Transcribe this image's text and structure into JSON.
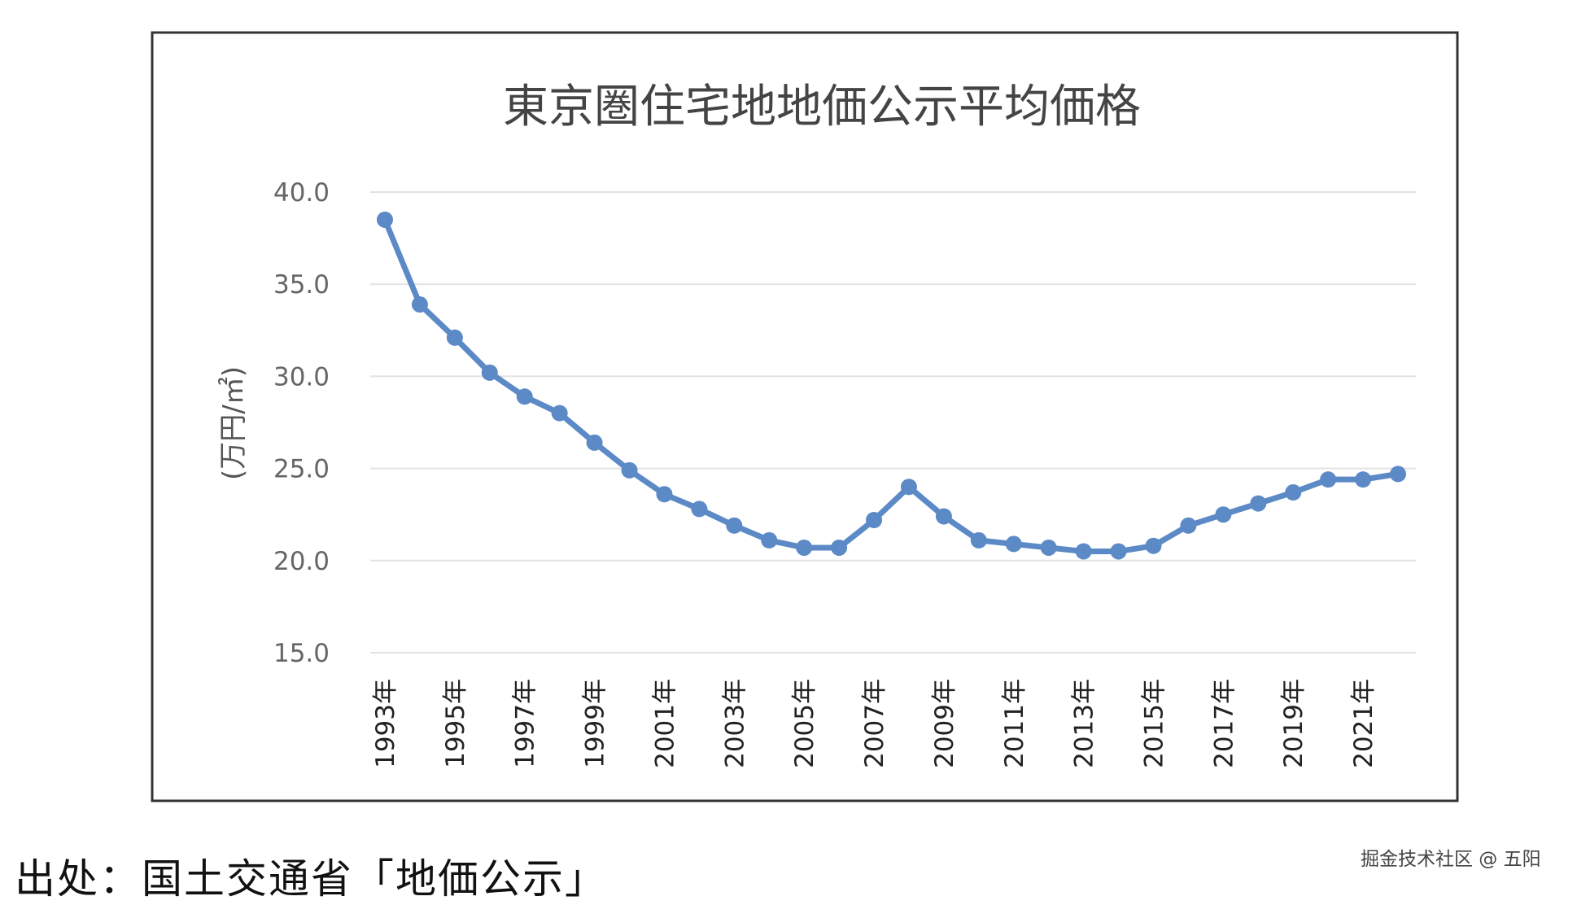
{
  "chart_data": {
    "type": "line",
    "title": "東京圏住宅地地価公示平均価格",
    "ylabel": "(万円/㎡)",
    "xlabel": "",
    "ylim": [
      15,
      40
    ],
    "yticks": [
      "40.0",
      "35.0",
      "30.0",
      "25.0",
      "20.0",
      "15.0"
    ],
    "ytick_values": [
      40,
      35,
      30,
      25,
      20,
      15
    ],
    "grid": true,
    "line_color": "#5b8ac6",
    "x": [
      "1993年",
      "1994年",
      "1995年",
      "1996年",
      "1997年",
      "1998年",
      "1999年",
      "2000年",
      "2001年",
      "2002年",
      "2003年",
      "2004年",
      "2005年",
      "2006年",
      "2007年",
      "2008年",
      "2009年",
      "2010年",
      "2011年",
      "2012年",
      "2013年",
      "2014年",
      "2015年",
      "2016年",
      "2017年",
      "2018年",
      "2019年",
      "2020年",
      "2021年",
      "2022年"
    ],
    "xtick_labels": [
      "1993年",
      "1995年",
      "1997年",
      "1999年",
      "2001年",
      "2003年",
      "2005年",
      "2007年",
      "2009年",
      "2011年",
      "2013年",
      "2015年",
      "2017年",
      "2019年",
      "2021年"
    ],
    "series": [
      {
        "values": [
          38.5,
          33.9,
          32.1,
          30.2,
          28.9,
          28.0,
          26.4,
          24.9,
          23.6,
          22.8,
          21.9,
          21.1,
          20.7,
          20.7,
          22.2,
          24.0,
          22.4,
          21.1,
          20.9,
          20.7,
          20.5,
          20.5,
          20.8,
          21.9,
          22.5,
          23.1,
          23.7,
          24.4,
          24.4,
          24.7
        ]
      }
    ]
  },
  "source": "出处：国土交通省「地価公示」",
  "watermark": "掘金技术社区 @ 五阳"
}
